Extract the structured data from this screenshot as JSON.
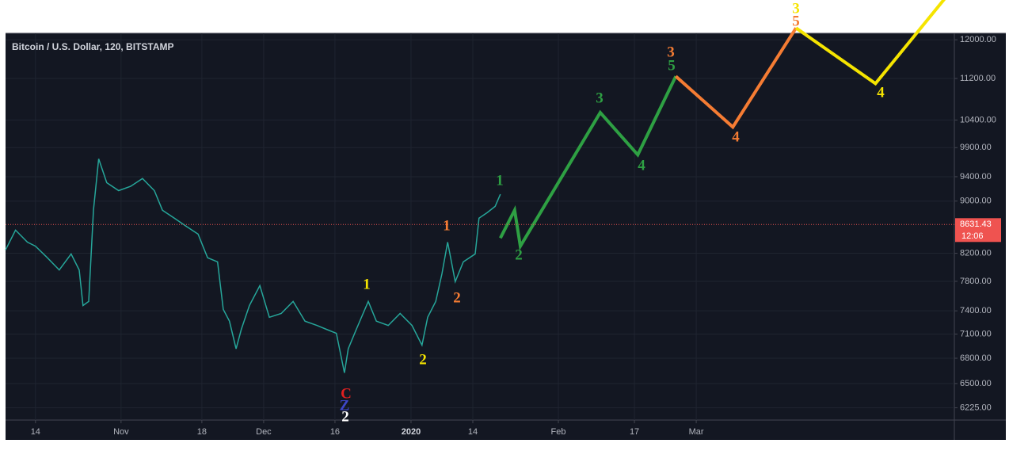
{
  "chart_data": {
    "type": "line",
    "title": "Bitcoin / U.S. Dollar, 120, BITSTAMP",
    "log_scale": true,
    "grid": true,
    "color": "#26a69a",
    "x": [
      -6.3,
      -4.2,
      -1.7,
      0,
      2.5,
      5,
      7.5,
      9.2,
      10,
      11.2,
      12.2,
      13.3,
      15,
      17.5,
      20,
      22.5,
      25,
      26.7,
      29.2,
      31.7,
      34.2,
      36.2,
      38.3,
      39.5,
      40.8,
      42.2,
      43.3,
      45,
      47.2,
      49.2,
      51.7,
      54.2,
      56.7,
      59.2,
      61.2,
      63.3,
      65,
      65.8,
      67.5,
      70,
      71.7,
      74.2,
      76.7,
      79.2,
      81.3,
      82.5,
      84.2,
      85.5,
      86.7,
      88.3,
      90,
      92.5,
      93.3,
      95,
      96.7,
      97.8
    ],
    "values": [
      8250,
      8545,
      8365,
      8305,
      8135,
      7960,
      8190,
      7960,
      7470,
      7525,
      8855,
      9705,
      9300,
      9170,
      9240,
      9370,
      9170,
      8855,
      8730,
      8605,
      8485,
      8135,
      8075,
      7420,
      7265,
      6915,
      7160,
      7470,
      7740,
      7315,
      7365,
      7525,
      7265,
      7210,
      7160,
      7110,
      6625,
      6915,
      7160,
      7525,
      7265,
      7210,
      7365,
      7210,
      6960,
      7315,
      7525,
      7905,
      8365,
      7795,
      8075,
      8190,
      8730,
      8815,
      8915,
      9110
    ],
    "xlim": [
      -6.3,
      193.3
    ],
    "xticks": [
      {
        "value": 0,
        "label": "14"
      },
      {
        "value": 18,
        "label": "Nov"
      },
      {
        "value": 35,
        "label": "18"
      },
      {
        "value": 48,
        "label": "Dec"
      },
      {
        "value": 63,
        "label": "16"
      },
      {
        "value": 79,
        "label": "2020"
      },
      {
        "value": 92,
        "label": "14"
      },
      {
        "value": 110,
        "label": "Feb"
      },
      {
        "value": 126,
        "label": "17"
      },
      {
        "value": 139,
        "label": "Mar"
      }
    ],
    "ylim": [
      6090,
      12140
    ],
    "yticks": [
      {
        "value": 12000,
        "label": "12000.00"
      },
      {
        "value": 11200,
        "label": "11200.00"
      },
      {
        "value": 10400,
        "label": "10400.00"
      },
      {
        "value": 9900,
        "label": "9900.00"
      },
      {
        "value": 9400,
        "label": "9400.00"
      },
      {
        "value": 9000,
        "label": "9000.00"
      },
      {
        "value": 8200,
        "label": "8200.00"
      },
      {
        "value": 7800,
        "label": "7800.00"
      },
      {
        "value": 7400,
        "label": "7400.00"
      },
      {
        "value": 7100,
        "label": "7100.00"
      },
      {
        "value": 6800,
        "label": "6800.00"
      },
      {
        "value": 6500,
        "label": "6500.00"
      },
      {
        "value": 6225,
        "label": "6225.00"
      }
    ],
    "last_price": 8631.43,
    "countdown": "12:06",
    "drawings": [
      {
        "color": "#2ea043",
        "x": [
          97.8,
          100.8,
          102,
          118.8,
          126.7,
          134.7
        ],
        "values": [
          8425,
          8855,
          8305,
          10540,
          9775,
          11245
        ]
      },
      {
        "color": "#f57c33",
        "x": [
          134.7,
          146.7,
          160
        ],
        "values": [
          11245,
          10270,
          12255
        ]
      },
      {
        "color": "#f5e400",
        "x": [
          160,
          176.7,
          191.7
        ],
        "values": [
          12255,
          11100,
          12970
        ]
      }
    ],
    "annotations": [
      {
        "text": "C",
        "color": "#e02020"
      },
      {
        "text": "Z",
        "color": "#3d46c8"
      },
      {
        "text": "2",
        "color": "#ffffff"
      },
      {
        "text": "1",
        "color": "#f5e400"
      },
      {
        "text": "2",
        "color": "#f5e400"
      },
      {
        "text": "1",
        "color": "#f57c33"
      },
      {
        "text": "2",
        "color": "#f57c33"
      },
      {
        "text": "1",
        "color": "#2ea043"
      },
      {
        "text": "2",
        "color": "#2ea043"
      },
      {
        "text": "3",
        "color": "#2ea043"
      },
      {
        "text": "4",
        "color": "#2ea043"
      },
      {
        "text": "3",
        "color": "#f57c33"
      },
      {
        "text": "5",
        "color": "#2ea043"
      },
      {
        "text": "4",
        "color": "#f57c33"
      },
      {
        "text": "3",
        "color": "#f5e400"
      },
      {
        "text": "5",
        "color": "#f57c33"
      },
      {
        "text": "4",
        "color": "#f5e400"
      }
    ]
  }
}
